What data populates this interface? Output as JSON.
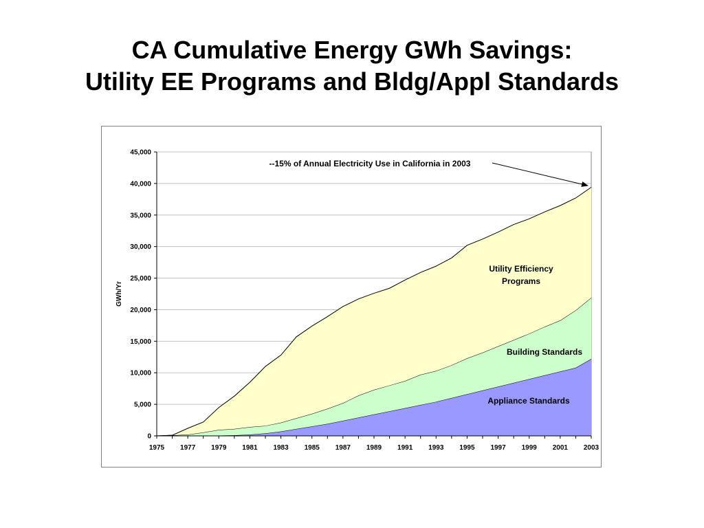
{
  "title": {
    "line1": "CA Cumulative Energy GWh Savings:",
    "line2": "Utility EE Programs and Bldg/Appl Standards"
  },
  "colors": {
    "appliance": "#9999ff",
    "building": "#ccffcc",
    "utility": "#ffffcc",
    "grid": "#c0c0c0",
    "axis": "#000000"
  },
  "chart_data": {
    "type": "area",
    "stacked": true,
    "ylabel": "GWh/Yr",
    "xlabel": "",
    "ylim": [
      0,
      45000
    ],
    "yticks": [
      "0",
      "5,000",
      "10,000",
      "15,000",
      "20,000",
      "25,000",
      "30,000",
      "35,000",
      "40,000",
      "45,000"
    ],
    "xtick_labels": [
      "1975",
      "1977",
      "1979",
      "1981",
      "1983",
      "1985",
      "1987",
      "1989",
      "1991",
      "1993",
      "1995",
      "1997",
      "1999",
      "2001",
      "2003"
    ],
    "grid": true,
    "x": [
      1975,
      1976,
      1977,
      1978,
      1979,
      1980,
      1981,
      1982,
      1983,
      1984,
      1985,
      1986,
      1987,
      1988,
      1989,
      1990,
      1991,
      1992,
      1993,
      1994,
      1995,
      1996,
      1997,
      1998,
      1999,
      2000,
      2001,
      2002,
      2003
    ],
    "series": [
      {
        "name": "Appliance Standards",
        "values": [
          0,
          0,
          0,
          0,
          50,
          100,
          200,
          400,
          700,
          1100,
          1500,
          1900,
          2400,
          2900,
          3400,
          3900,
          4400,
          4900,
          5400,
          6000,
          6600,
          7200,
          7800,
          8400,
          9000,
          9600,
          10200,
          10800,
          12200
        ]
      },
      {
        "name": "Building Standards",
        "values": [
          0,
          100,
          200,
          550,
          900,
          1000,
          1200,
          1200,
          1400,
          1700,
          2000,
          2400,
          2800,
          3500,
          3900,
          4100,
          4300,
          4800,
          4900,
          5200,
          5700,
          6000,
          6400,
          6800,
          7200,
          7700,
          8100,
          9100,
          9700
        ]
      },
      {
        "name": "Utility Efficiency Programs",
        "values": [
          0,
          0,
          1000,
          1650,
          3550,
          5200,
          7100,
          9400,
          10700,
          12900,
          13900,
          14600,
          15300,
          15300,
          15300,
          15400,
          16000,
          16200,
          16600,
          17000,
          17900,
          18000,
          18100,
          18300,
          18200,
          18200,
          18200,
          17800,
          17500
        ]
      }
    ],
    "labels": {
      "utility": [
        "Utility Efficiency",
        "Programs"
      ],
      "building": "Building Standards",
      "appliance": "Appliance Standards"
    },
    "annotation": "--15% of Annual Electricity Use in California in 2003"
  }
}
